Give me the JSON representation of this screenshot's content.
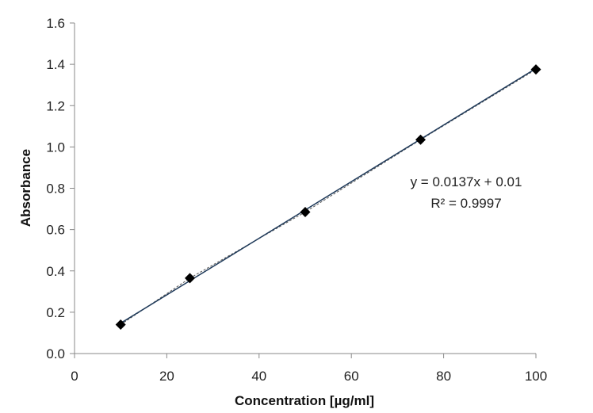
{
  "chart_data": {
    "type": "scatter",
    "xlabel": "Concentration [µg/ml]",
    "ylabel": "Absorbance",
    "xlim": [
      0,
      100
    ],
    "ylim": [
      0,
      1.6
    ],
    "x_ticks": [
      "0",
      "20",
      "40",
      "60",
      "80",
      "100"
    ],
    "y_ticks": [
      "0.0",
      "0.2",
      "0.4",
      "0.6",
      "0.8",
      "1.0",
      "1.2",
      "1.4",
      "1.6"
    ],
    "grid": false,
    "series": [
      {
        "x": [
          10,
          25,
          50,
          75,
          100
        ],
        "y": [
          0.14,
          0.365,
          0.685,
          1.035,
          1.375
        ],
        "marker": "diamond",
        "color": "#000000",
        "connected": "dashed"
      }
    ],
    "trendline": {
      "slope": 0.0137,
      "intercept": 0.01,
      "color": "#1f3a5a"
    },
    "annotations": {
      "equation": "y = 0.0137x + 0.01",
      "r_squared": "R² = 0.9997"
    }
  }
}
